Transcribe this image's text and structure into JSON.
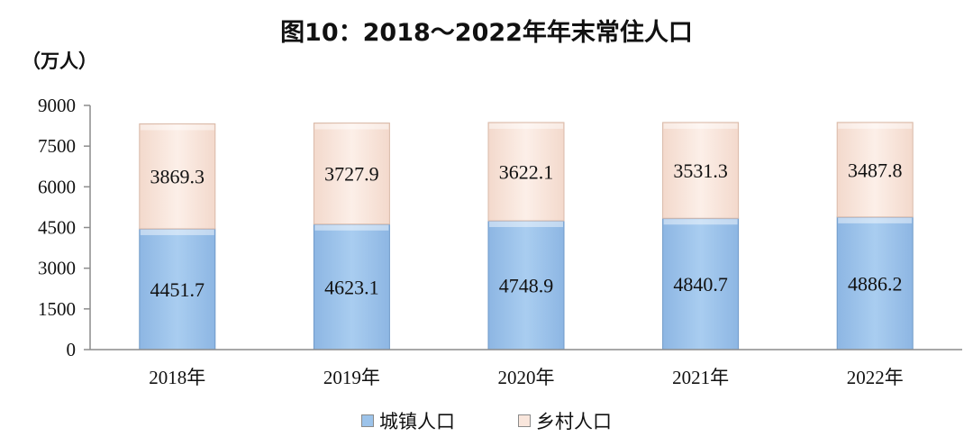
{
  "chart_data": {
    "type": "bar",
    "stacked": true,
    "title": "图10：2018～2022年年末常住人口",
    "ylabel": "（万人）",
    "ylim": [
      0,
      9000
    ],
    "yticks": [
      0,
      1500,
      3000,
      4500,
      6000,
      7500,
      9000
    ],
    "categories": [
      "2018年",
      "2019年",
      "2020年",
      "2021年",
      "2022年"
    ],
    "series": [
      {
        "name": "城镇人口",
        "values": [
          4451.7,
          4623.1,
          4748.9,
          4840.7,
          4886.2
        ],
        "color": "#9cc3ea",
        "label_color": "#111111"
      },
      {
        "name": "乡村人口",
        "values": [
          3869.3,
          3727.9,
          3622.1,
          3531.3,
          3487.8
        ],
        "color": "#f9e6dc",
        "label_color": "#111111"
      }
    ],
    "value_labels": [
      [
        "4451.7",
        "4623.1",
        "4748.9",
        "4840.7",
        "4886.2"
      ],
      [
        "3869.3",
        "3727.9",
        "3622.1",
        "3531.3",
        "3487.8"
      ]
    ],
    "legend_position": "bottom",
    "grid": false
  }
}
